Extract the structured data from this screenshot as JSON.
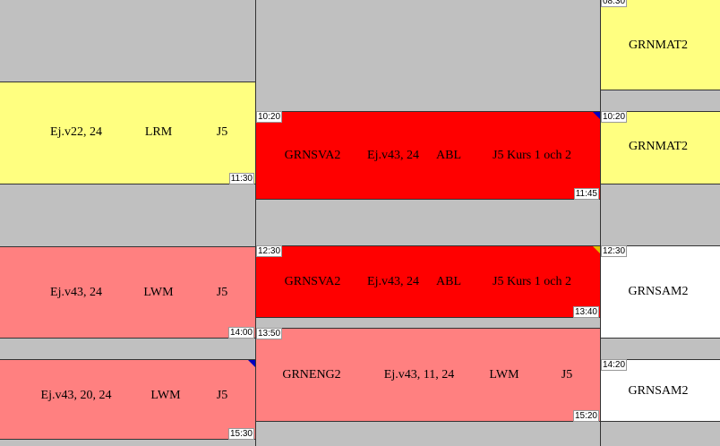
{
  "columns": [
    {
      "blocks": [
        {
          "texts": [
            "Ej.v22, 24",
            "LRM",
            "J5"
          ],
          "end": "11:30"
        },
        {
          "texts": [
            "Ej.v43, 24",
            "LWM",
            "J5"
          ],
          "end": "14:00"
        },
        {
          "texts": [
            "Ej.v43, 20, 24",
            "LWM",
            "J5"
          ],
          "end": "15:30"
        }
      ]
    },
    {
      "blocks": [
        {
          "texts": [
            "GRNSVA2",
            "Ej.v43, 24",
            "ABL",
            "J5 Kurs 1 och 2"
          ],
          "start": "10:20",
          "end": "11:45"
        },
        {
          "texts": [
            "GRNSVA2",
            "Ej.v43, 24",
            "ABL",
            "J5 Kurs 1 och 2"
          ],
          "start": "12:30",
          "end": "13:40"
        },
        {
          "texts": [
            "GRNENG2",
            "Ej.v43, 11, 24",
            "LWM",
            "J5"
          ],
          "start": "13:50",
          "end": "15:20"
        }
      ]
    },
    {
      "blocks": [
        {
          "texts": [
            "GRNMAT2"
          ],
          "start": "08:30"
        },
        {
          "texts": [
            "GRNMAT2"
          ],
          "start": "10:20"
        },
        {
          "texts": [
            "GRNSAM2"
          ],
          "start": "12:30"
        },
        {
          "texts": [
            "GRNSAM2"
          ],
          "start": "14:20"
        }
      ]
    }
  ]
}
